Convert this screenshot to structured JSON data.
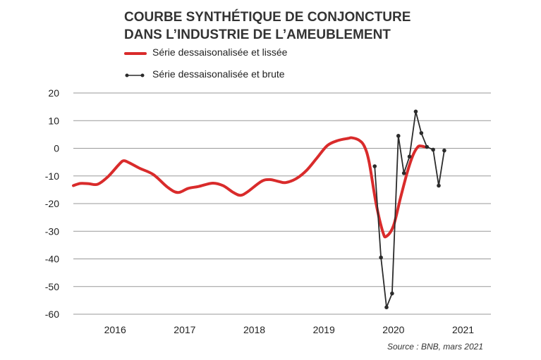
{
  "title_lines": [
    "COURBE SYNTHÉTIQUE DE CONJONCTURE",
    "DANS L’INDUSTRIE DE L’AMEUBLEMENT"
  ],
  "source": "Source : BNB, mars 2021",
  "colors": {
    "smoothed": "#d92b2b",
    "raw": "#2b2b2b",
    "grid": "#999999",
    "axis_text": "#222222"
  },
  "chart_data": {
    "type": "line",
    "title": "COURBE SYNTHÉTIQUE DE CONJONCTURE DANS L’INDUSTRIE DE L’AMEUBLEMENT",
    "xlabel": "",
    "ylabel": "",
    "ylim": [
      -60,
      20
    ],
    "xlim": [
      2015.5,
      2021.5
    ],
    "yticks": [
      20,
      10,
      0,
      -10,
      -20,
      -30,
      -40,
      -50,
      -60
    ],
    "ytick_labels": [
      "20",
      "10",
      "0",
      "-10",
      "-20",
      "-30",
      "-40",
      "-50",
      "-60"
    ],
    "xtick_labels": [
      "2016",
      "2017",
      "2018",
      "2019",
      "2020",
      "2021"
    ],
    "grid": "horizontal",
    "legend_position": "top-left",
    "series": [
      {
        "name": "Série dessaisonalisée et lissée",
        "style": "thick-line",
        "points": [
          [
            2015.5,
            -13.5
          ],
          [
            2015.6,
            -12.7
          ],
          [
            2015.72,
            -12.8
          ],
          [
            2015.85,
            -13.0
          ],
          [
            2016.0,
            -10.2
          ],
          [
            2016.15,
            -6.0
          ],
          [
            2016.22,
            -4.5
          ],
          [
            2016.3,
            -5.2
          ],
          [
            2016.45,
            -7.2
          ],
          [
            2016.65,
            -9.5
          ],
          [
            2016.85,
            -14.0
          ],
          [
            2017.0,
            -16.0
          ],
          [
            2017.15,
            -14.5
          ],
          [
            2017.3,
            -13.8
          ],
          [
            2017.5,
            -12.6
          ],
          [
            2017.65,
            -13.5
          ],
          [
            2017.8,
            -16.0
          ],
          [
            2017.9,
            -17.0
          ],
          [
            2018.0,
            -15.8
          ],
          [
            2018.2,
            -12.0
          ],
          [
            2018.32,
            -11.3
          ],
          [
            2018.45,
            -12.0
          ],
          [
            2018.55,
            -12.4
          ],
          [
            2018.7,
            -11.0
          ],
          [
            2018.85,
            -8.0
          ],
          [
            2019.0,
            -3.5
          ],
          [
            2019.15,
            1.0
          ],
          [
            2019.3,
            2.8
          ],
          [
            2019.45,
            3.6
          ],
          [
            2019.5,
            3.8
          ],
          [
            2019.6,
            3.0
          ],
          [
            2019.68,
            0.8
          ],
          [
            2019.75,
            -5.0
          ],
          [
            2019.85,
            -20.0
          ],
          [
            2019.95,
            -30.5
          ],
          [
            2020.0,
            -31.8
          ],
          [
            2020.1,
            -28.0
          ],
          [
            2020.2,
            -18.0
          ],
          [
            2020.3,
            -8.5
          ],
          [
            2020.38,
            -2.5
          ],
          [
            2020.45,
            0.5
          ],
          [
            2020.5,
            0.8
          ],
          [
            2020.55,
            0.5
          ]
        ]
      },
      {
        "name": "Série dessaisonalisée et brute",
        "style": "line-markers",
        "points": [
          [
            2019.83,
            -6.5
          ],
          [
            2019.92,
            -39.5
          ],
          [
            2020.0,
            -57.5
          ],
          [
            2020.08,
            -52.5
          ],
          [
            2020.17,
            4.5
          ],
          [
            2020.25,
            -9.0
          ],
          [
            2020.33,
            -3.0
          ],
          [
            2020.42,
            13.3
          ],
          [
            2020.5,
            5.5
          ],
          [
            2020.58,
            0.5
          ],
          [
            2020.67,
            -0.5
          ],
          [
            2020.75,
            -13.5
          ],
          [
            2020.83,
            -0.8
          ]
        ]
      }
    ]
  }
}
